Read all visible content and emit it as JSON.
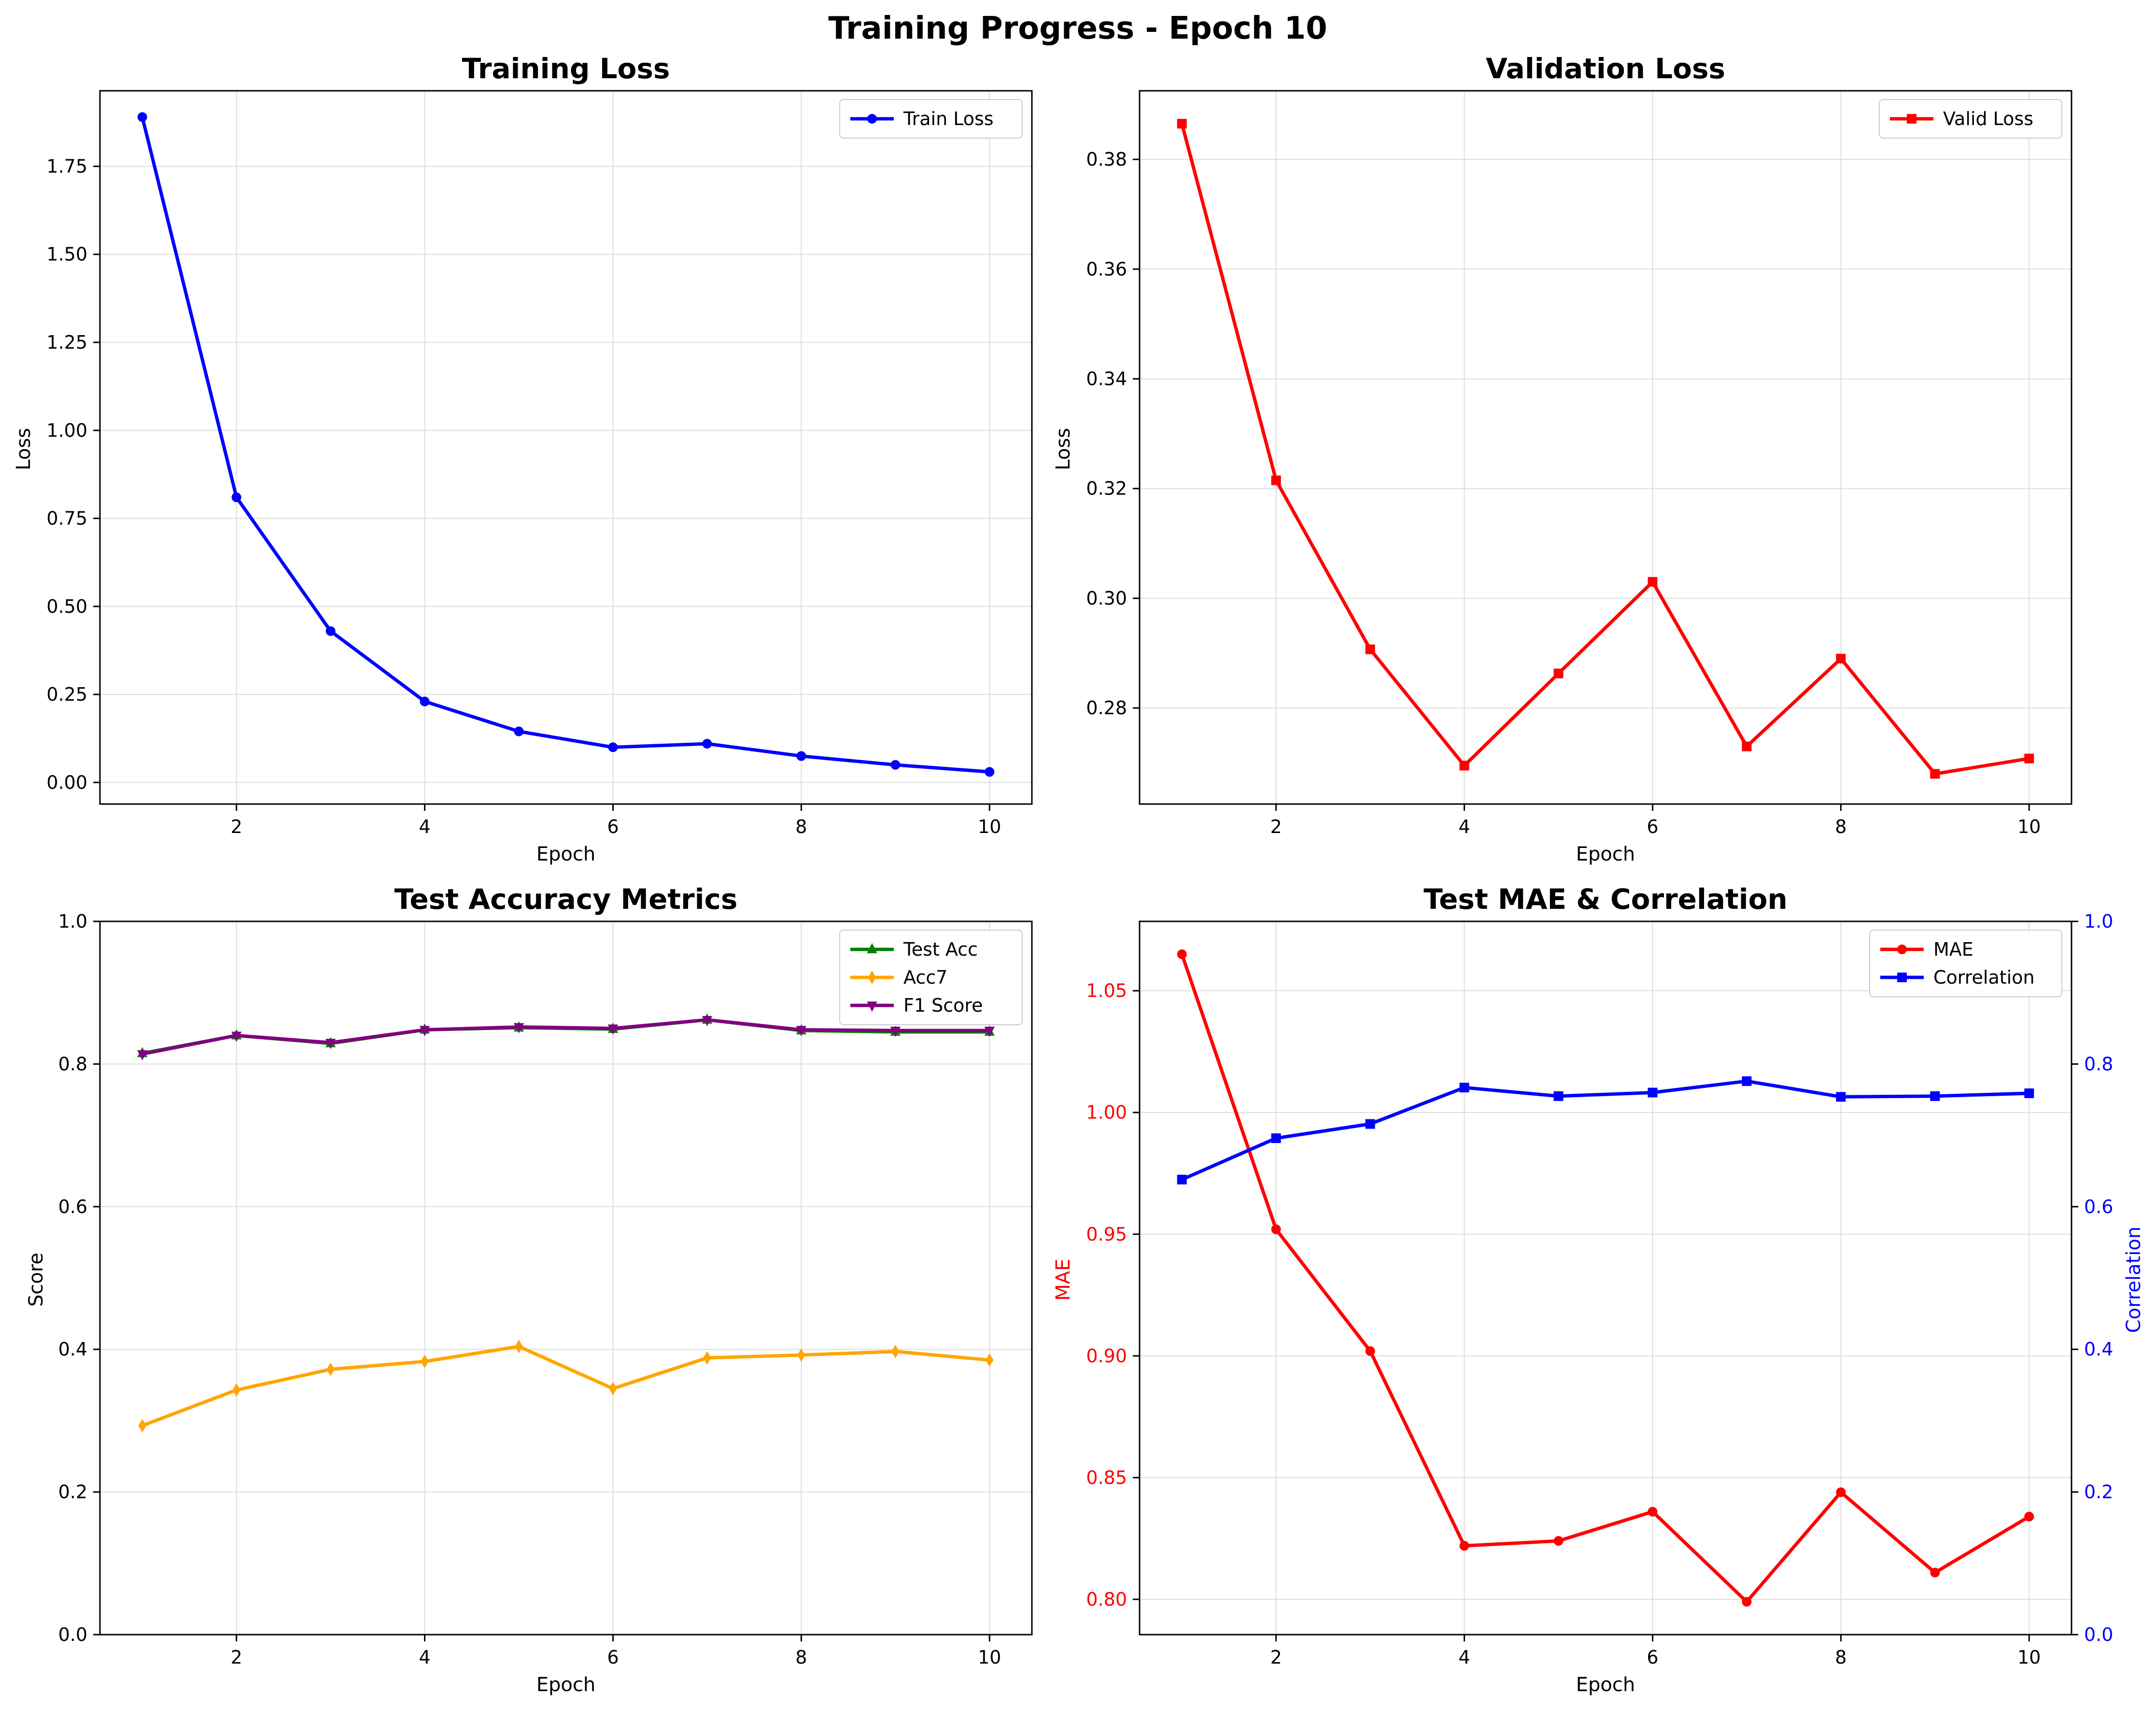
{
  "figure_title": "Training Progress - Epoch 10",
  "chart_data": [
    {
      "id": "train",
      "type": "line",
      "title": "Training Loss",
      "xlabel": "Epoch",
      "ylabel": "Loss",
      "xlim": [
        0.55,
        10.45
      ],
      "ylim": [
        -0.0613,
        1.9646
      ],
      "xticks": [
        2,
        4,
        6,
        8,
        10
      ],
      "yticks": [
        0.0,
        0.25,
        0.5,
        0.75,
        1.0,
        1.25,
        1.5,
        1.75
      ],
      "ytick_labels": [
        "0.00",
        "0.25",
        "0.50",
        "0.75",
        "1.00",
        "1.25",
        "1.50",
        "1.75"
      ],
      "grid": true,
      "legend": "upper right",
      "x": [
        1,
        2,
        3,
        4,
        5,
        6,
        7,
        8,
        9,
        10
      ],
      "series": [
        {
          "name": "Train Loss",
          "color": "#0000ff",
          "marker": "circle",
          "values": [
            1.89,
            0.81,
            0.43,
            0.23,
            0.145,
            0.1,
            0.11,
            0.075,
            0.05,
            0.03
          ]
        }
      ]
    },
    {
      "id": "valid",
      "type": "line",
      "title": "Validation Loss",
      "xlabel": "Epoch",
      "ylabel": "Loss",
      "xlim": [
        0.55,
        10.45
      ],
      "ylim": [
        0.2625,
        0.3925
      ],
      "xticks": [
        2,
        4,
        6,
        8,
        10
      ],
      "yticks": [
        0.28,
        0.3,
        0.32,
        0.34,
        0.36,
        0.38
      ],
      "ytick_labels": [
        "0.28",
        "0.30",
        "0.32",
        "0.34",
        "0.36",
        "0.38"
      ],
      "grid": true,
      "legend": "upper right",
      "x": [
        1,
        2,
        3,
        4,
        5,
        6,
        7,
        8,
        9,
        10
      ],
      "series": [
        {
          "name": "Valid Loss",
          "color": "#ff0000",
          "marker": "square",
          "values": [
            0.3865,
            0.3215,
            0.2907,
            0.2695,
            0.2863,
            0.303,
            0.273,
            0.289,
            0.268,
            0.2708
          ]
        }
      ]
    },
    {
      "id": "acc",
      "type": "line",
      "title": "Test Accuracy Metrics",
      "xlabel": "Epoch",
      "ylabel": "Score",
      "xlim": [
        0.55,
        10.45
      ],
      "ylim": [
        0,
        1
      ],
      "xticks": [
        2,
        4,
        6,
        8,
        10
      ],
      "yticks": [
        0.0,
        0.2,
        0.4,
        0.6,
        0.8,
        1.0
      ],
      "ytick_labels": [
        "0.0",
        "0.2",
        "0.4",
        "0.6",
        "0.8",
        "1.0"
      ],
      "grid": true,
      "legend": "upper right",
      "x": [
        1,
        2,
        3,
        4,
        5,
        6,
        7,
        8,
        9,
        10
      ],
      "series": [
        {
          "name": "Test Acc",
          "color": "#008000",
          "marker": "triangle-up",
          "values": [
            0.815,
            0.84,
            0.829,
            0.848,
            0.851,
            0.849,
            0.862,
            0.847,
            0.845,
            0.845
          ]
        },
        {
          "name": "Acc7",
          "color": "#ffa500",
          "marker": "diamond",
          "values": [
            0.293,
            0.343,
            0.372,
            0.383,
            0.404,
            0.345,
            0.388,
            0.392,
            0.397,
            0.385
          ]
        },
        {
          "name": "F1 Score",
          "color": "#800080",
          "marker": "triangle-down",
          "values": [
            0.814,
            0.84,
            0.83,
            0.848,
            0.852,
            0.85,
            0.862,
            0.848,
            0.847,
            0.847
          ]
        }
      ]
    },
    {
      "id": "mae",
      "type": "line",
      "title": "Test MAE & Correlation",
      "xlabel": "Epoch",
      "ylabel": "MAE",
      "ylabel_right": "Correlation",
      "ylabel_color": "#ff0000",
      "ylabel_right_color": "#0000ff",
      "xlim": [
        0.55,
        10.45
      ],
      "ylim": [
        0.7855,
        1.0785
      ],
      "ylim_right": [
        0,
        1
      ],
      "xticks": [
        2,
        4,
        6,
        8,
        10
      ],
      "yticks": [
        0.8,
        0.85,
        0.9,
        0.95,
        1.0,
        1.05
      ],
      "ytick_labels": [
        "0.80",
        "0.85",
        "0.90",
        "0.95",
        "1.00",
        "1.05"
      ],
      "yticks_right": [
        0.0,
        0.2,
        0.4,
        0.6,
        0.8,
        1.0
      ],
      "ytick_labels_right": [
        "0.0",
        "0.2",
        "0.4",
        "0.6",
        "0.8",
        "1.0"
      ],
      "grid": true,
      "legend": "upper right",
      "x": [
        1,
        2,
        3,
        4,
        5,
        6,
        7,
        8,
        9,
        10
      ],
      "series": [
        {
          "name": "MAE",
          "color": "#ff0000",
          "marker": "circle",
          "axis": "left",
          "values": [
            1.065,
            0.952,
            0.902,
            0.822,
            0.824,
            0.836,
            0.799,
            0.844,
            0.811,
            0.834
          ]
        },
        {
          "name": "Correlation",
          "color": "#0000ff",
          "marker": "square",
          "axis": "right",
          "values": [
            0.638,
            0.696,
            0.716,
            0.767,
            0.755,
            0.76,
            0.776,
            0.754,
            0.755,
            0.759
          ]
        }
      ]
    }
  ]
}
